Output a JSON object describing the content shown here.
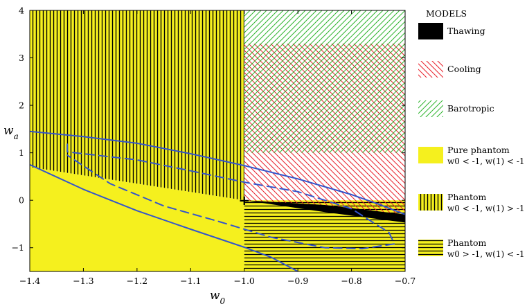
{
  "chart_data": {
    "type": "area",
    "title": "",
    "xlabel": "w0",
    "ylabel": "wa",
    "xlim": [
      -1.4,
      -0.7
    ],
    "ylim": [
      -1.5,
      4
    ],
    "x_ticks": [
      -1.4,
      -1.3,
      -1.2,
      -1.1,
      -1.0,
      -0.9,
      -0.8,
      -0.7
    ],
    "x_tick_labels": [
      "−1.4",
      "−1.3",
      "−1.2",
      "−1.1",
      "−1.0",
      "−0.9",
      "−0.8",
      "−0.7"
    ],
    "y_ticks": [
      -1,
      0,
      1,
      2,
      3,
      4
    ],
    "y_tick_labels": [
      "−1",
      "0",
      "1",
      "2",
      "3",
      "4"
    ],
    "grid": false,
    "legend_position": "right",
    "legend_title": "MODELS",
    "legend": [
      {
        "key": "thawing",
        "label": "Thawing",
        "pattern": "solid",
        "color": "#000000"
      },
      {
        "key": "cooling",
        "label": "Cooling",
        "pattern": "diag-down",
        "color": "#e8202a"
      },
      {
        "key": "barotropic",
        "label": "Barotropic",
        "pattern": "diag-up",
        "color": "#2fb52f"
      },
      {
        "key": "pure_phantom",
        "label": "Pure phantom",
        "sub": "w0 < -1,  w(1) < -1",
        "pattern": "solid",
        "color": "#f5f01e"
      },
      {
        "key": "phantom_a",
        "label": "Phantom",
        "sub": "w0 < -1,  w(1) > -1",
        "pattern": "vertical",
        "color": "#f5f01e"
      },
      {
        "key": "phantom_b",
        "label": "Phantom",
        "sub": "w0 > -1,  w(1) < -1",
        "pattern": "horizontal",
        "color": "#f5f01e"
      }
    ],
    "regions": {
      "phantom_vertical": {
        "x_range": [
          -1.4,
          -1.0
        ],
        "lower_boundary": [
          [
            -1.4,
            0.7
          ],
          [
            -1.0,
            0.0
          ]
        ],
        "upper": 4
      },
      "pure_phantom": {
        "x_range": [
          -1.4,
          -1.0
        ],
        "upper_boundary": [
          [
            -1.4,
            0.7
          ],
          [
            -1.0,
            0.0
          ]
        ],
        "lower": -1.5
      },
      "phantom_horizontal": {
        "x_range": [
          -1.0,
          -0.7
        ],
        "y_range": [
          -1.5,
          0
        ]
      },
      "cooling": {
        "x_range": [
          -1.0,
          -0.7
        ],
        "lower_boundary": [
          [
            -1.0,
            0.0
          ],
          [
            -0.7,
            -0.35
          ]
        ],
        "upper": 3.3
      },
      "barotropic": {
        "x_range": [
          -1.0,
          -0.7
        ],
        "y_range": [
          1.0,
          4.0
        ]
      },
      "thawing": {
        "upper_boundary": [
          [
            -1.0,
            0.0
          ],
          [
            -0.85,
            -0.1
          ],
          [
            -0.7,
            -0.3
          ]
        ],
        "lower_boundary": [
          [
            -1.0,
            0.0
          ],
          [
            -0.85,
            -0.25
          ],
          [
            -0.7,
            -0.47
          ]
        ]
      }
    },
    "series": [
      {
        "style": "solid",
        "color": "#3355cc",
        "points": [
          [
            -1.4,
            1.45
          ],
          [
            -1.3,
            1.34
          ],
          [
            -1.2,
            1.2
          ],
          [
            -1.1,
            0.98
          ],
          [
            -1.0,
            0.73
          ],
          [
            -0.9,
            0.45
          ],
          [
            -0.8,
            0.12
          ],
          [
            -0.75,
            -0.08
          ],
          [
            -0.7,
            -0.3
          ]
        ]
      },
      {
        "style": "solid",
        "color": "#3355cc",
        "points": [
          [
            -1.4,
            0.75
          ],
          [
            -1.3,
            0.23
          ],
          [
            -1.2,
            -0.22
          ],
          [
            -1.1,
            -0.61
          ],
          [
            -1.0,
            -0.99
          ],
          [
            -0.95,
            -1.2
          ],
          [
            -0.9,
            -1.5
          ]
        ]
      },
      {
        "style": "dashed",
        "color": "#3355cc",
        "points": [
          [
            -1.33,
            1.18
          ],
          [
            -1.33,
            1.02
          ],
          [
            -1.2,
            0.85
          ],
          [
            -1.1,
            0.62
          ],
          [
            -1.0,
            0.38
          ],
          [
            -0.9,
            0.18
          ],
          [
            -0.8,
            -0.18
          ],
          [
            -0.73,
            -0.68
          ],
          [
            -0.72,
            -0.92
          ],
          [
            -0.78,
            -1.02
          ],
          [
            -0.85,
            -1.0
          ],
          [
            -0.95,
            -0.78
          ],
          [
            -1.05,
            -0.44
          ],
          [
            -1.15,
            -0.12
          ],
          [
            -1.25,
            0.35
          ],
          [
            -1.33,
            0.95
          ]
        ]
      }
    ],
    "annotations": [
      {
        "symbol": "+",
        "x": -1.0,
        "y": 0.0
      }
    ]
  }
}
